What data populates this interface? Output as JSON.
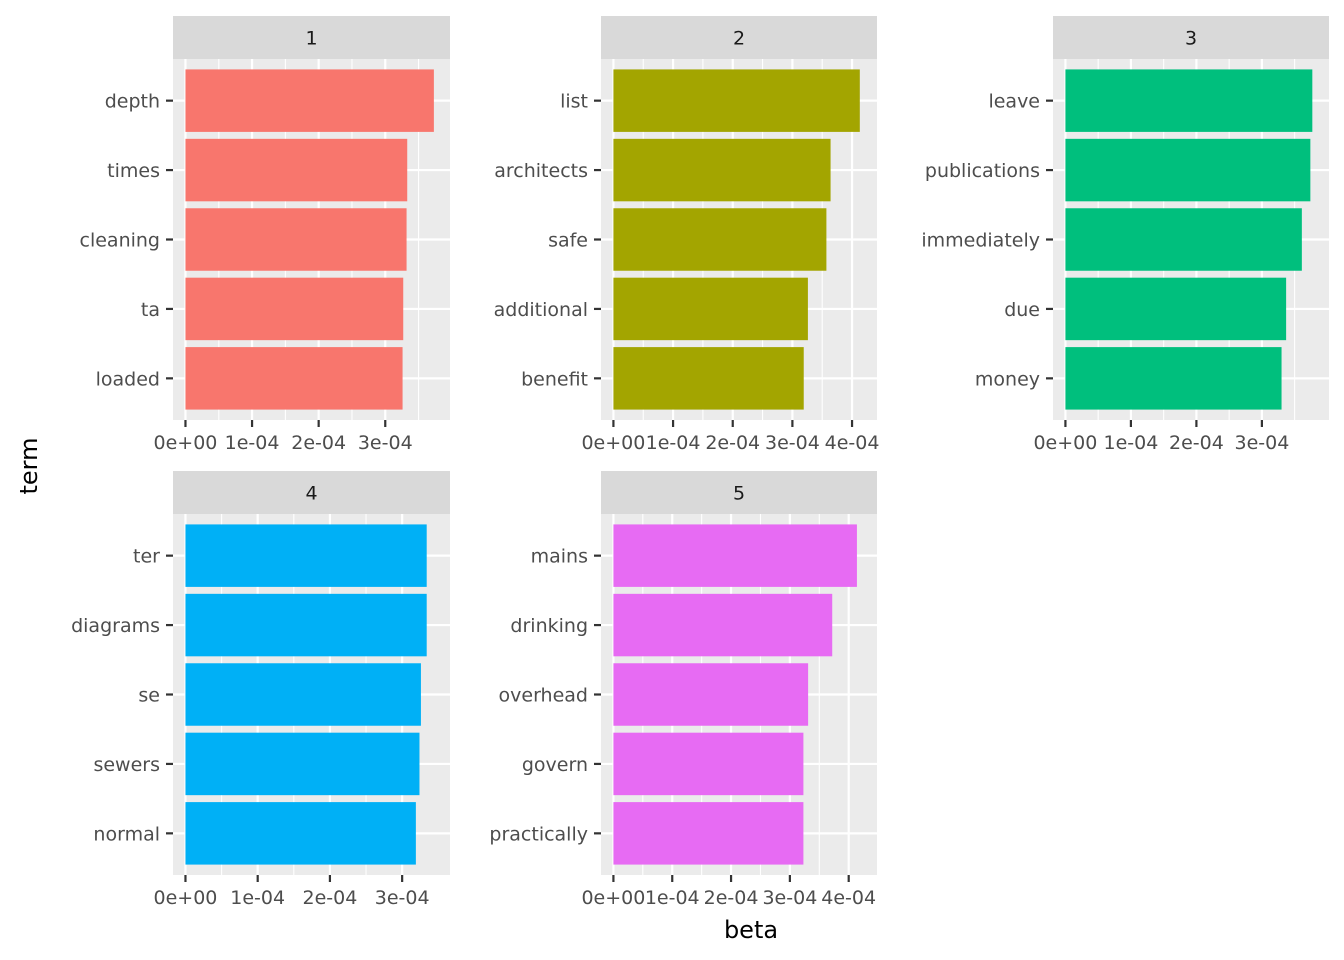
{
  "chart_data": {
    "type": "bar",
    "orientation": "horizontal",
    "facet_layout": "wrap",
    "xlabel": "beta",
    "ylabel": "term",
    "grid": true,
    "legend": "none",
    "panels": [
      {
        "title": "1",
        "color": "#F8766D",
        "xlim": [
          0,
          0.0003785
        ],
        "ticks": [
          0,
          0.0001,
          0.0002,
          0.0003
        ],
        "tick_labels": [
          "0e+00",
          "1e-04",
          "2e-04",
          "3e-04"
        ],
        "categories": [
          "depth",
          "times",
          "cleaning",
          "ta",
          "loaded"
        ],
        "values": [
          0.000373,
          0.000333,
          0.000332,
          0.000327,
          0.000326
        ]
      },
      {
        "title": "2",
        "color": "#A3A500",
        "xlim": [
          0,
          0.000421
        ],
        "ticks": [
          0,
          0.0001,
          0.0002,
          0.0003,
          0.0004
        ],
        "tick_labels": [
          "0e+00",
          "1e-04",
          "2e-04",
          "3e-04",
          "4e-04"
        ],
        "categories": [
          "list",
          "architects",
          "safe",
          "additional",
          "benefit"
        ],
        "values": [
          0.000413,
          0.000364,
          0.000357,
          0.000326,
          0.000319
        ]
      },
      {
        "title": "3",
        "color": "#00BF7D",
        "xlim": [
          0,
          0.0003835
        ],
        "ticks": [
          0,
          0.0001,
          0.0002,
          0.0003
        ],
        "tick_labels": [
          "0e+00",
          "1e-04",
          "2e-04",
          "3e-04"
        ],
        "categories": [
          "leave",
          "publications",
          "immediately",
          "due",
          "money"
        ],
        "values": [
          0.000377,
          0.000374,
          0.000361,
          0.000337,
          0.00033
        ]
      },
      {
        "title": "4",
        "color": "#00B0F6",
        "xlim": [
          0,
          0.000349
        ],
        "ticks": [
          0,
          0.0001,
          0.0002,
          0.0003
        ],
        "tick_labels": [
          "0e+00",
          "1e-04",
          "2e-04",
          "3e-04"
        ],
        "categories": [
          "ter",
          "diagrams",
          "se",
          "sewers",
          "normal"
        ],
        "values": [
          0.000334,
          0.000334,
          0.000326,
          0.000324,
          0.000319
        ]
      },
      {
        "title": "5",
        "color": "#E76BF3",
        "xlim": [
          0,
          0.000427
        ],
        "ticks": [
          0,
          0.0001,
          0.0002,
          0.0003,
          0.0004
        ],
        "tick_labels": [
          "0e+00",
          "1e-04",
          "2e-04",
          "3e-04",
          "4e-04"
        ],
        "categories": [
          "mains",
          "drinking",
          "overhead",
          "govern",
          "practically"
        ],
        "values": [
          0.000414,
          0.000372,
          0.000331,
          0.000323,
          0.000323
        ]
      }
    ]
  }
}
